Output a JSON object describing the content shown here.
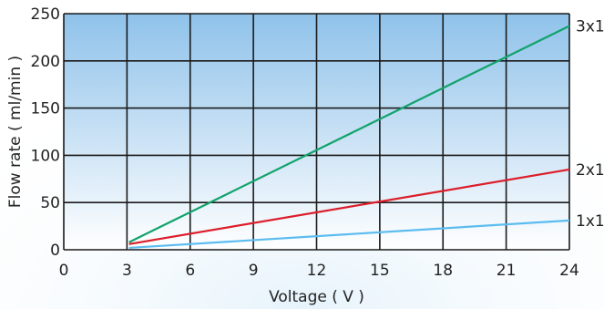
{
  "chart_data": {
    "type": "line",
    "xlabel": "Voltage ( V )",
    "ylabel": "Flow rate ( ml/min )",
    "xlim": [
      0,
      24
    ],
    "ylim": [
      0,
      250
    ],
    "x_ticks": [
      0,
      3,
      6,
      9,
      12,
      15,
      18,
      21,
      24
    ],
    "y_ticks": [
      0,
      50,
      100,
      150,
      200,
      250
    ],
    "grid": true,
    "background_gradient": [
      "#8fc2ea",
      "#ffffff"
    ],
    "series": [
      {
        "name": "3x1",
        "color": "#11a36b",
        "x": [
          3.1,
          24
        ],
        "y": [
          8,
          237
        ]
      },
      {
        "name": "2x1",
        "color": "#dc1e2a",
        "x": [
          3.1,
          24
        ],
        "y": [
          6,
          85
        ]
      },
      {
        "name": "1x1",
        "color": "#5bbcf0",
        "x": [
          3.1,
          24
        ],
        "y": [
          2,
          31
        ]
      }
    ]
  }
}
